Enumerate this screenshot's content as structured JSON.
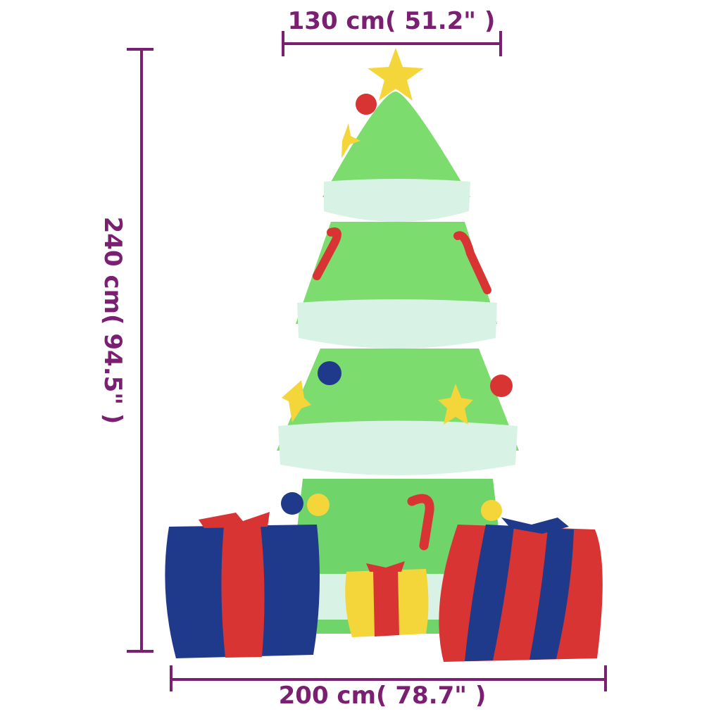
{
  "dimensions": {
    "width_top": "130 cm( 51.2\" )",
    "height": "240 cm( 94.5\" )",
    "width_bottom": "200 cm( 78.7\" )"
  },
  "colors": {
    "dimension_line": "#7b1f72",
    "tree_green": "#7ddc6e",
    "snow_band": "#d8f3e6",
    "gift_blue": "#1f3a8a",
    "gift_red": "#d93434",
    "gift_yellow": "#f5d63a"
  }
}
